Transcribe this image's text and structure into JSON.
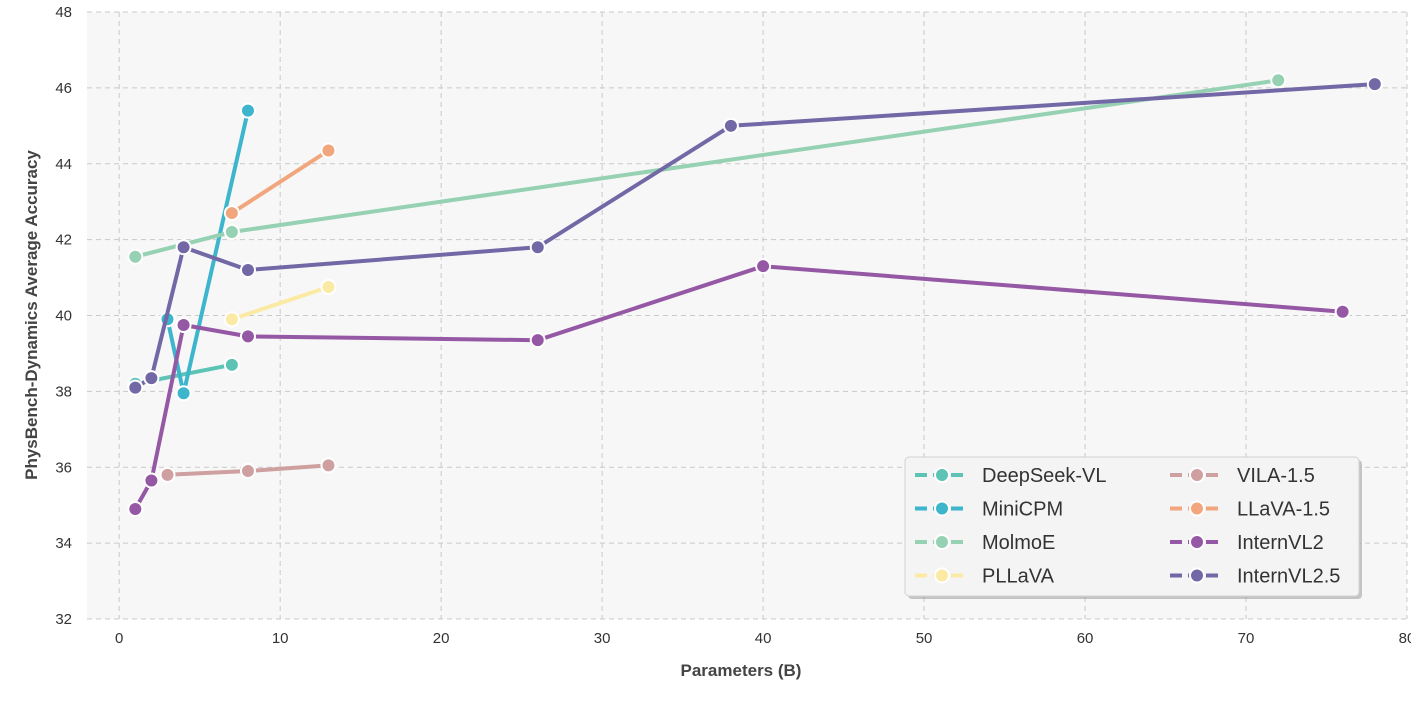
{
  "chart_data": {
    "type": "line",
    "title": "",
    "xlabel": "Parameters (B)",
    "ylabel": "PhysBench-Dynamics Average Accuracy",
    "xlim": [
      -2,
      80
    ],
    "ylim": [
      32,
      48
    ],
    "xticks": [
      0,
      10,
      20,
      30,
      40,
      50,
      60,
      70,
      80
    ],
    "yticks": [
      32,
      34,
      36,
      38,
      40,
      42,
      44,
      46,
      48
    ],
    "grid": true,
    "grid_style": "dashed",
    "background": "#f7f7f7",
    "legend_position": "lower-right",
    "series": [
      {
        "name": "DeepSeek-VL",
        "color": "#5cc3b5",
        "x": [
          1,
          7
        ],
        "y": [
          38.2,
          38.7
        ]
      },
      {
        "name": "MiniCPM",
        "color": "#3db5cd",
        "x": [
          3,
          4,
          8
        ],
        "y": [
          39.9,
          37.95,
          45.4
        ]
      },
      {
        "name": "MolmoE",
        "color": "#95d1b2",
        "x": [
          1,
          7,
          72
        ],
        "y": [
          41.55,
          42.2,
          46.2
        ]
      },
      {
        "name": "PLLaVA",
        "color": "#fbeaa4",
        "x": [
          7,
          13
        ],
        "y": [
          39.9,
          40.75
        ]
      },
      {
        "name": "VILA-1.5",
        "color": "#cfa0a0",
        "x": [
          3,
          8,
          13
        ],
        "y": [
          35.8,
          35.9,
          36.05
        ]
      },
      {
        "name": "LLaVA-1.5",
        "color": "#f2a67d",
        "x": [
          7,
          13
        ],
        "y": [
          42.7,
          44.35
        ]
      },
      {
        "name": "InternVL2",
        "color": "#9558a4",
        "x": [
          1,
          2,
          4,
          8,
          26,
          40,
          76
        ],
        "y": [
          34.9,
          35.65,
          39.75,
          39.45,
          39.35,
          41.3,
          40.1
        ]
      },
      {
        "name": "InternVL2.5",
        "color": "#7268a6",
        "x": [
          1,
          2,
          4,
          8,
          26,
          38,
          78
        ],
        "y": [
          38.1,
          38.35,
          41.8,
          41.2,
          41.8,
          45.0,
          46.1
        ]
      }
    ]
  }
}
